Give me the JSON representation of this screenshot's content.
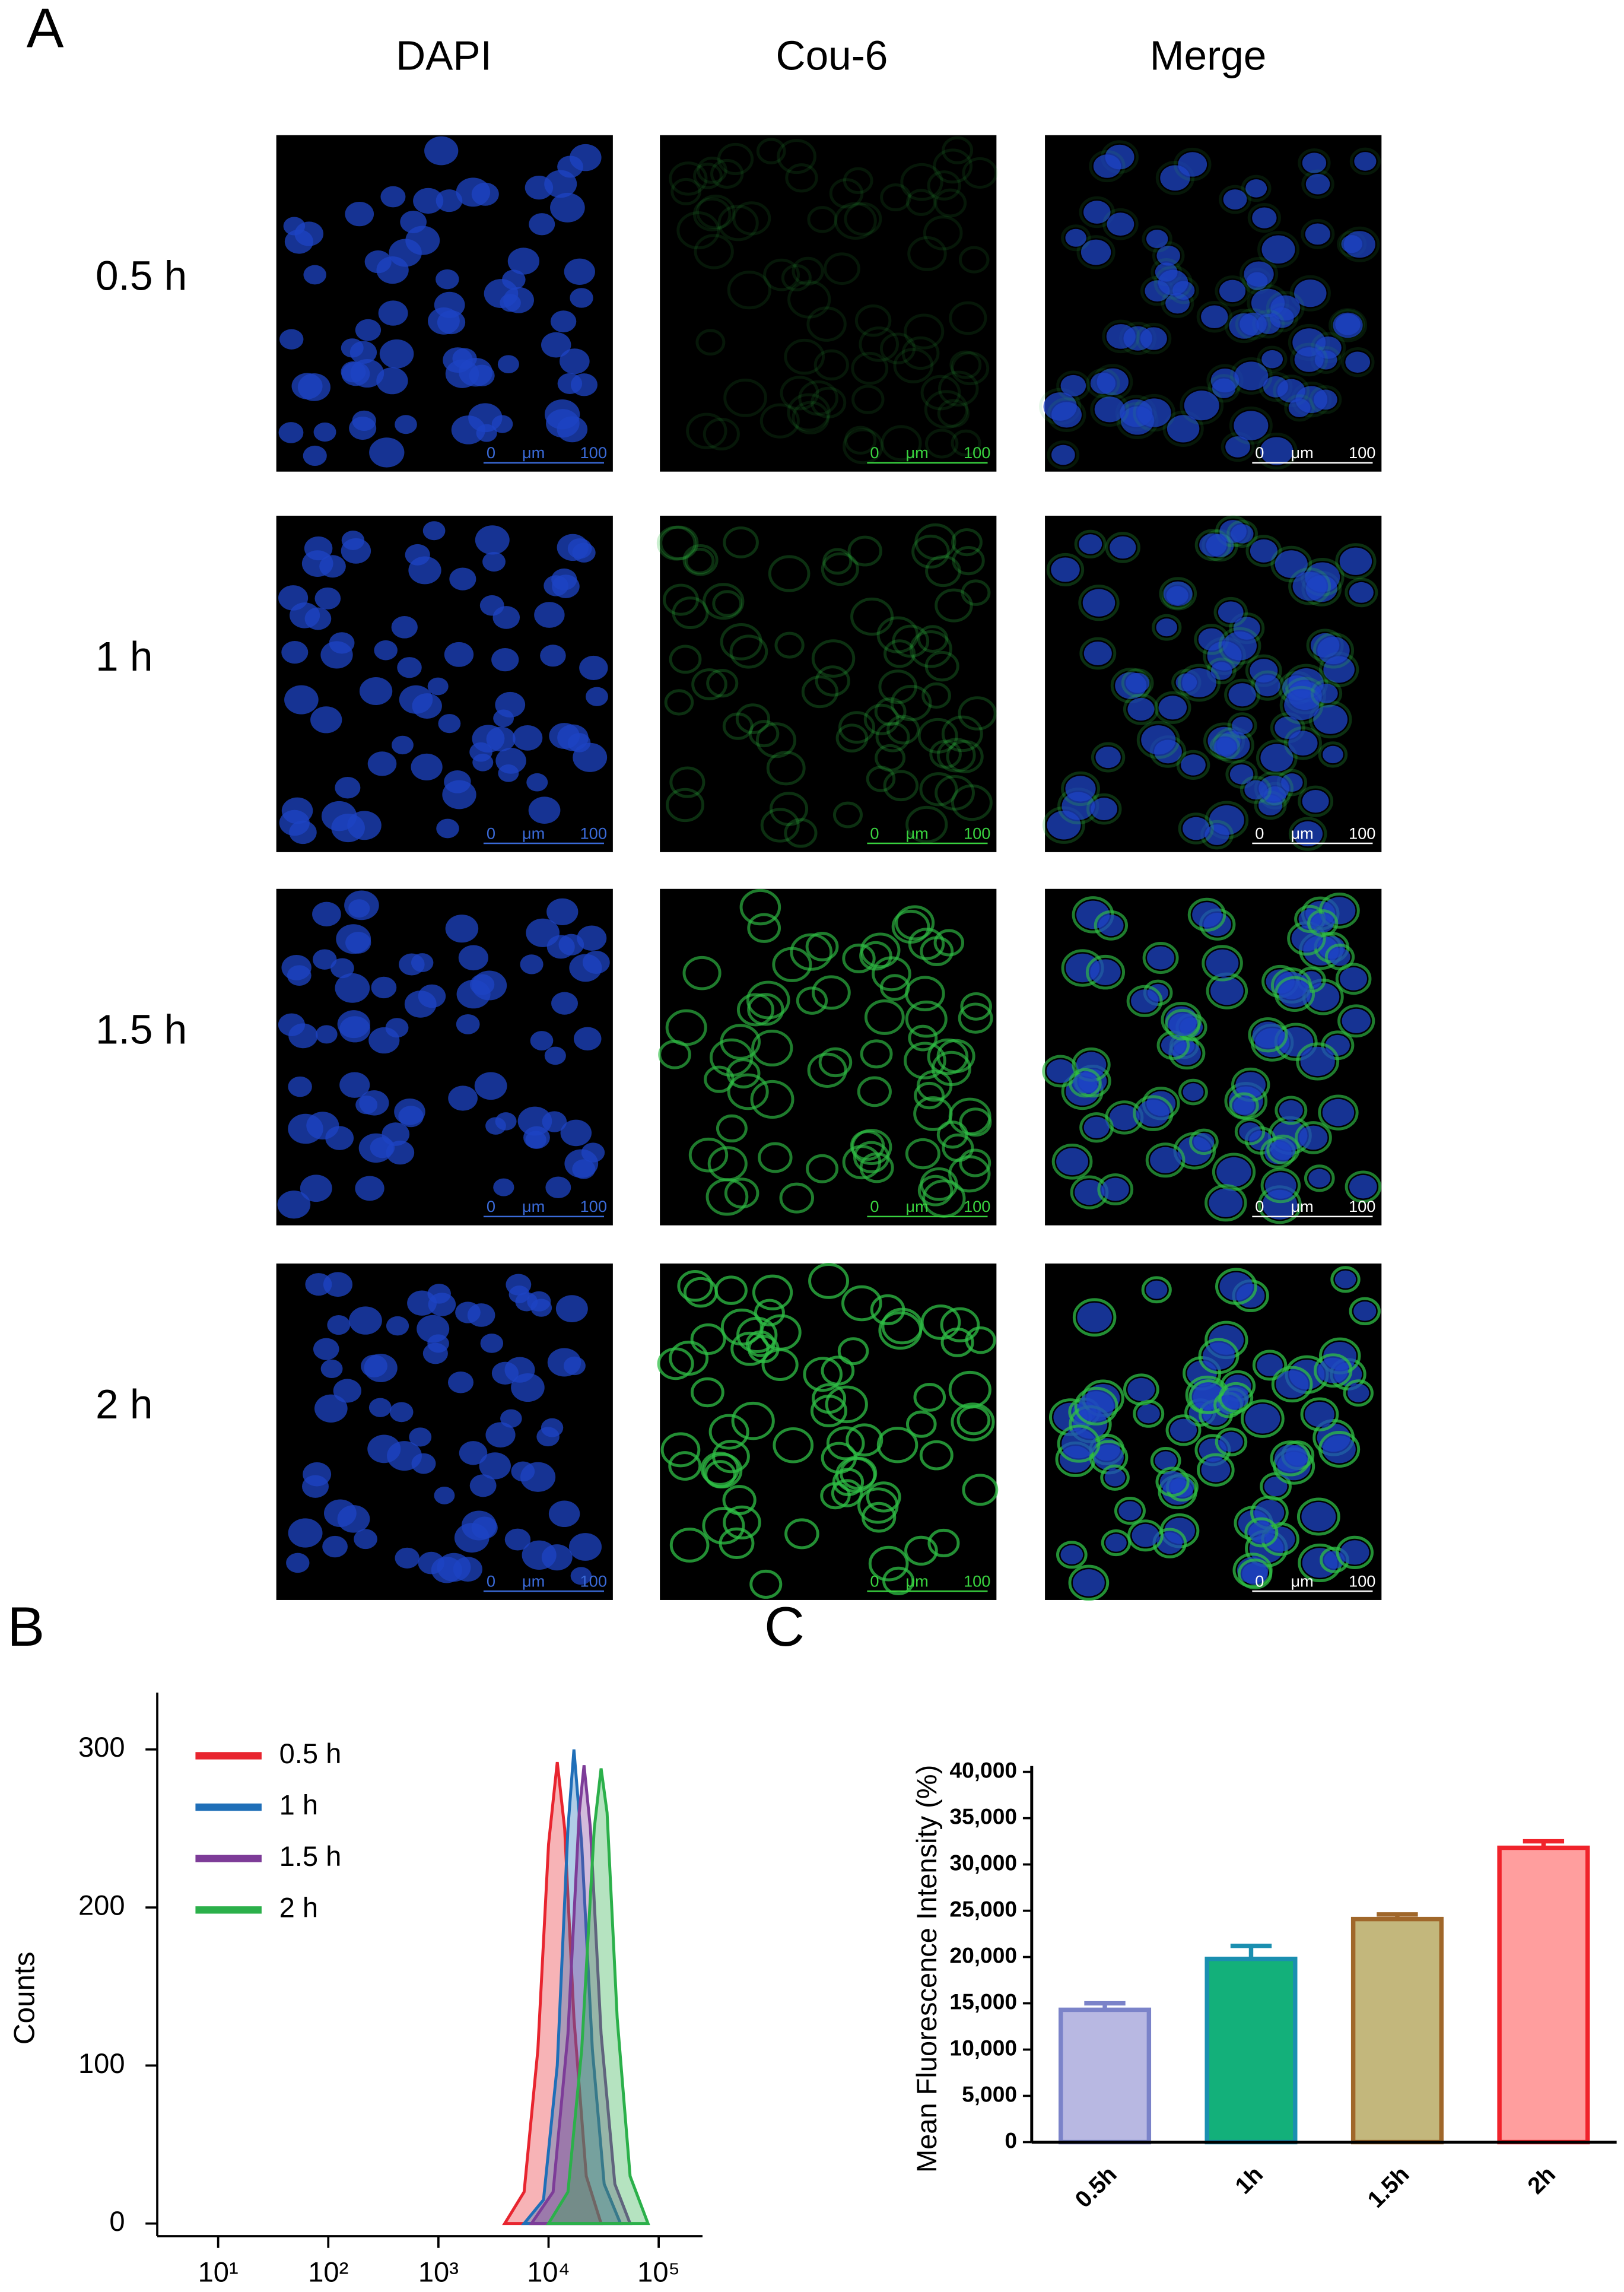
{
  "panel_a": {
    "letter": "A",
    "columns": [
      "DAPI",
      "Cou-6",
      "Merge"
    ],
    "rows": [
      "0.5 h",
      "1 h",
      "1.5 h",
      "2 h"
    ],
    "scale_bar": {
      "start": "0",
      "unit": "μm",
      "end": "100"
    }
  },
  "chart_data": [
    {
      "type": "line",
      "letter": "B",
      "ylabel": "Counts",
      "log_x": true,
      "fill_area": true,
      "legend": "top-left",
      "xlim": [
        2.8,
        250000
      ],
      "ylim": [
        -8,
        336
      ],
      "xticks": [
        {
          "value": 10,
          "label": "10¹"
        },
        {
          "value": 100,
          "label": "10²"
        },
        {
          "value": 1000,
          "label": "10³"
        },
        {
          "value": 10000,
          "label": "10⁴"
        },
        {
          "value": 100000,
          "label": "10⁵"
        }
      ],
      "yticks": [
        0,
        100,
        200,
        300
      ],
      "series": [
        {
          "name": "0.5 h",
          "color": "#e8252f",
          "x": [
            4000,
            6000,
            8000,
            10000,
            12000,
            14000,
            17000,
            22000,
            30000
          ],
          "values": [
            0,
            20,
            110,
            240,
            292,
            250,
            130,
            30,
            0
          ]
        },
        {
          "name": "1 h",
          "color": "#1f6fb8",
          "x": [
            6000,
            9000,
            12000,
            15000,
            17000,
            20000,
            25000,
            32000,
            45000
          ],
          "values": [
            0,
            15,
            100,
            250,
            300,
            240,
            110,
            25,
            0
          ]
        },
        {
          "name": "1.5 h",
          "color": "#7d3c98",
          "x": [
            7000,
            11000,
            15000,
            19000,
            21000,
            24000,
            30000,
            40000,
            55000
          ],
          "values": [
            0,
            20,
            120,
            260,
            290,
            250,
            120,
            25,
            0
          ]
        },
        {
          "name": "2 h",
          "color": "#2bb04a",
          "x": [
            10000,
            15000,
            20000,
            26000,
            30000,
            34000,
            42000,
            55000,
            80000
          ],
          "values": [
            0,
            20,
            110,
            250,
            288,
            260,
            130,
            30,
            0
          ]
        }
      ]
    },
    {
      "type": "bar",
      "letter": "C",
      "ylabel": "Mean Fluorescence Intensity (%)",
      "categories": [
        "0.5h",
        "1h",
        "1.5h",
        "2h"
      ],
      "values": [
        14300,
        19800,
        24100,
        31800
      ],
      "errors": [
        700,
        1400,
        500,
        700
      ],
      "colors": [
        "#b8b8e2",
        "#13b07a",
        "#c3b77c",
        "#ff9e9e"
      ],
      "edge_colors": [
        "#7b83c9",
        "#1a8fb0",
        "#a0672a",
        "#f0232b"
      ],
      "ylim": [
        0,
        40000
      ],
      "yticks": [
        0,
        {
          "value": 5000,
          "label": "5,000"
        },
        {
          "value": 10000,
          "label": "10,000"
        },
        {
          "value": 15000,
          "label": "15,000"
        },
        {
          "value": 20000,
          "label": "20,000"
        },
        {
          "value": 25000,
          "label": "25,000"
        },
        {
          "value": 30000,
          "label": "30,000"
        },
        {
          "value": 35000,
          "label": "35,000"
        },
        {
          "value": 40000,
          "label": "40,000"
        }
      ]
    }
  ]
}
